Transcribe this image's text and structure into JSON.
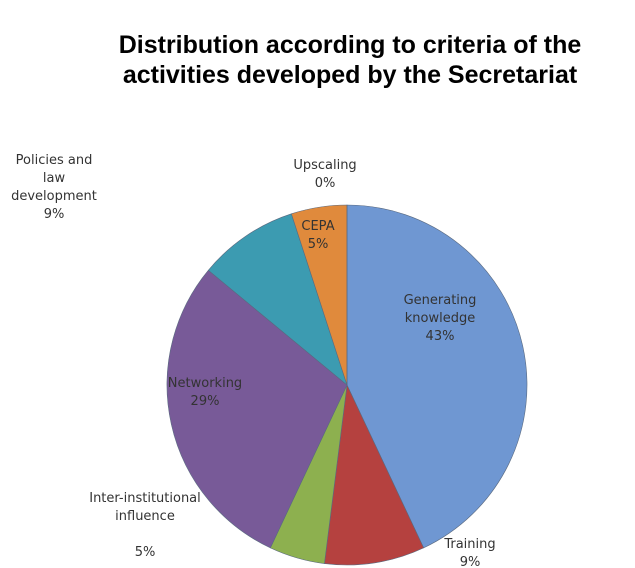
{
  "chart_data": {
    "type": "pie",
    "title": "Distribution according to criteria of the activities developed by the Secretariat",
    "categories": [
      "Generating knowledge",
      "Training",
      "Inter-institutional influence",
      "Networking",
      "Policies and law development",
      "CEPA",
      "Upscaling"
    ],
    "values": [
      43,
      9,
      5,
      29,
      9,
      5,
      0
    ],
    "value_labels": [
      "43%",
      "9%",
      "5%",
      "29%",
      "9%",
      "5%",
      "0%"
    ],
    "colors": [
      "#6f97d2",
      "#b5413f",
      "#8db04f",
      "#785a98",
      "#3c9bb1",
      "#e08a3c",
      "#d0d0d0"
    ]
  }
}
